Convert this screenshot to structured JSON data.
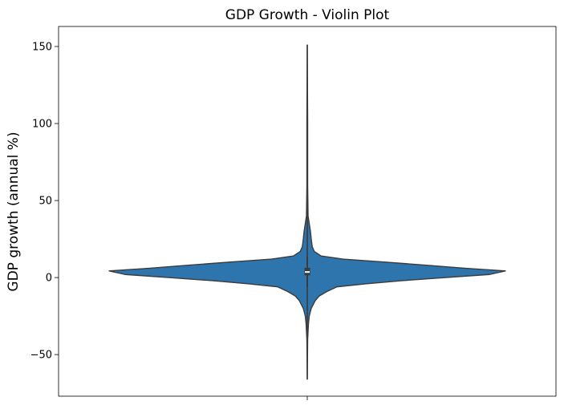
{
  "chart_data": {
    "type": "violin",
    "title": "GDP Growth - Violin Plot",
    "xlabel": "",
    "ylabel": "GDP growth (annual %)",
    "ylim": [
      -77,
      163
    ],
    "yticks": [
      -50,
      0,
      50,
      100,
      150
    ],
    "ytick_labels": [
      "−50",
      "0",
      "50",
      "100",
      "150"
    ],
    "grid": false,
    "series": [
      {
        "color": "#2e75ad",
        "outline_color": "#3b3b3b",
        "min": -66,
        "max": 151,
        "q1": 1.5,
        "median": 3.6,
        "q3": 6.3,
        "whisker_low": -6,
        "whisker_high": 13.5,
        "density_profile": [
          [
            -66,
            0.0
          ],
          [
            -40,
            0.002
          ],
          [
            -30,
            0.006
          ],
          [
            -25,
            0.01
          ],
          [
            -20,
            0.02
          ],
          [
            -15,
            0.04
          ],
          [
            -12,
            0.06
          ],
          [
            -9,
            0.1
          ],
          [
            -6,
            0.15
          ],
          [
            -4,
            0.3
          ],
          [
            -2,
            0.48
          ],
          [
            0,
            0.7
          ],
          [
            2,
            0.92
          ],
          [
            4.3,
            1.0
          ],
          [
            6,
            0.8
          ],
          [
            8,
            0.6
          ],
          [
            10,
            0.4
          ],
          [
            12,
            0.18
          ],
          [
            14,
            0.07
          ],
          [
            17,
            0.035
          ],
          [
            20,
            0.025
          ],
          [
            25,
            0.02
          ],
          [
            30,
            0.016
          ],
          [
            35,
            0.01
          ],
          [
            40,
            0.004
          ],
          [
            60,
            0.002
          ],
          [
            100,
            0.002
          ],
          [
            151,
            0.0
          ]
        ]
      }
    ]
  }
}
